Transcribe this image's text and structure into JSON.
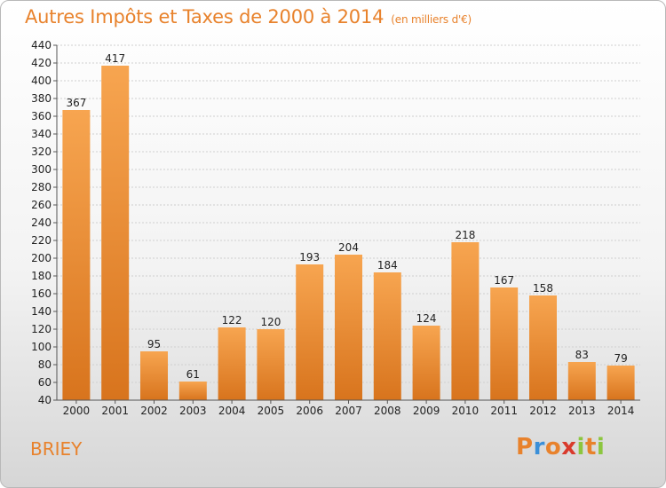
{
  "chart_data": {
    "type": "bar",
    "title": "Autres Impôts et Taxes de 2000 à 2014",
    "subtitle": "(en milliers d'€)",
    "categories": [
      "2000",
      "2001",
      "2002",
      "2003",
      "2004",
      "2005",
      "2006",
      "2007",
      "2008",
      "2009",
      "2010",
      "2011",
      "2012",
      "2013",
      "2014"
    ],
    "values": [
      367,
      417,
      95,
      61,
      122,
      120,
      193,
      204,
      184,
      124,
      218,
      167,
      158,
      83,
      79
    ],
    "ylim": [
      40,
      440
    ],
    "yticks": [
      40,
      60,
      80,
      100,
      120,
      140,
      160,
      180,
      200,
      220,
      240,
      260,
      280,
      300,
      320,
      340,
      360,
      380,
      400,
      420,
      440
    ],
    "grid": true,
    "bar_color": "#f0912f",
    "xlabel": "",
    "ylabel": ""
  },
  "footer": {
    "city": "BRIEY",
    "logo": {
      "letters": [
        "P",
        "r",
        "o",
        "x",
        "i",
        "t",
        "i"
      ],
      "colors": [
        "#e8822c",
        "#3a8fd8",
        "#e8822c",
        "#d93a2c",
        "#8cc63f",
        "#e8822c",
        "#8cc63f"
      ]
    }
  }
}
